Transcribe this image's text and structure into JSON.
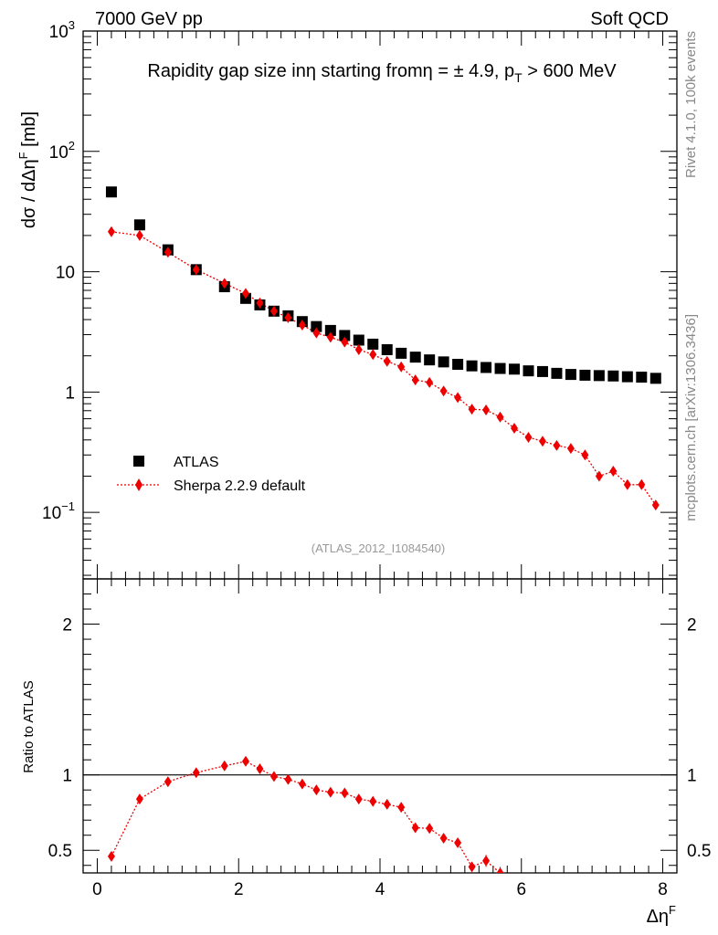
{
  "header": {
    "left": "7000 GeV pp",
    "right": "Soft QCD"
  },
  "side_labels": {
    "top": "Rivet 4.1.0,  100k events",
    "bottom": "mcplots.cern.ch [arXiv:1306.3436]"
  },
  "watermark": "(ATLAS_2012_I1084540)",
  "colors": {
    "atlas": "#000000",
    "sherpa": "#ee0000",
    "side_text": "#888888"
  },
  "chart_data": [
    {
      "type": "scatter",
      "title": "Rapidity gap size in η starting from η = ± 4.9, p_T > 600 MeV",
      "title_parts": {
        "a": "Rapidity gap size in",
        "b": "η starting from",
        "c": "η = ± 4.9, p",
        "sub": "T",
        "d": " > 600 MeV"
      },
      "ylabel": "dσ / dΔη^F [mb]",
      "ylabel_parts": {
        "main": "dσ / dΔη",
        "sup": "F",
        "unit": " [mb]"
      },
      "yscale": "log",
      "ylim": [
        0.028,
        1000
      ],
      "xlim": [
        -0.2,
        8.2
      ],
      "y_ticks": [
        {
          "value": 0.1,
          "base": "10",
          "exp": "−1"
        },
        {
          "value": 1,
          "label": "1"
        },
        {
          "value": 10,
          "label": "10"
        },
        {
          "value": 100,
          "base": "10",
          "exp": "2"
        },
        {
          "value": 1000,
          "base": "10",
          "exp": "3"
        }
      ],
      "legend": [
        {
          "name": "ATLAS",
          "marker": "square"
        },
        {
          "name": "Sherpa 2.2.9 default",
          "marker": "diamond"
        }
      ],
      "legend_position": "lower-left",
      "series": [
        {
          "name": "ATLAS",
          "x": [
            0.2,
            0.6,
            1.0,
            1.4,
            1.8,
            2.1,
            2.3,
            2.5,
            2.7,
            2.9,
            3.1,
            3.3,
            3.5,
            3.7,
            3.9,
            4.1,
            4.3,
            4.5,
            4.7,
            4.9,
            5.1,
            5.3,
            5.5,
            5.7,
            5.9,
            6.1,
            6.3,
            6.5,
            6.7,
            6.9,
            7.1,
            7.3,
            7.5,
            7.7,
            7.9
          ],
          "y": [
            46,
            24.5,
            15.2,
            10.4,
            7.5,
            6.0,
            5.3,
            4.7,
            4.3,
            3.85,
            3.5,
            3.25,
            2.95,
            2.7,
            2.5,
            2.25,
            2.1,
            1.95,
            1.85,
            1.78,
            1.7,
            1.65,
            1.6,
            1.57,
            1.55,
            1.5,
            1.48,
            1.43,
            1.4,
            1.38,
            1.37,
            1.36,
            1.34,
            1.33,
            1.3
          ]
        },
        {
          "name": "Sherpa 2.2.9 default",
          "x": [
            0.2,
            0.6,
            1.0,
            1.4,
            1.8,
            2.1,
            2.3,
            2.5,
            2.7,
            2.9,
            3.1,
            3.3,
            3.5,
            3.7,
            3.9,
            4.1,
            4.3,
            4.5,
            4.7,
            4.9,
            5.1,
            5.3,
            5.5,
            5.7,
            5.9,
            6.1,
            6.3,
            6.5,
            6.7,
            6.9,
            7.1,
            7.3,
            7.5,
            7.7,
            7.9
          ],
          "y": [
            21.5,
            20.0,
            14.5,
            10.4,
            8.0,
            6.6,
            5.5,
            4.7,
            4.15,
            3.6,
            3.1,
            2.85,
            2.6,
            2.25,
            2.05,
            1.8,
            1.62,
            1.26,
            1.2,
            1.02,
            0.9,
            0.72,
            0.71,
            0.62,
            0.5,
            0.42,
            0.39,
            0.36,
            0.34,
            0.3,
            0.2,
            0.22,
            0.17,
            0.17,
            0.115
          ]
        }
      ]
    },
    {
      "type": "line",
      "ylabel": "Ratio to ATLAS",
      "xlabel": "Δη^F",
      "xlabel_parts": {
        "main": "Δη",
        "sup": "F"
      },
      "xlim": [
        -0.2,
        8.2
      ],
      "ylim": [
        0.35,
        2.3
      ],
      "x_ticks": [
        0,
        2,
        4,
        6,
        8
      ],
      "y_ticks": [
        0.5,
        1,
        2
      ],
      "reference_line": 1,
      "series": [
        {
          "name": "Sherpa 2.2.9 default",
          "x": [
            0.2,
            0.6,
            1.0,
            1.4,
            1.8,
            2.1,
            2.3,
            2.5,
            2.7,
            2.9,
            3.1,
            3.3,
            3.5,
            3.7,
            3.9,
            4.1,
            4.3,
            4.5,
            4.7,
            4.9,
            5.1,
            5.3,
            5.5,
            5.7
          ],
          "y": [
            0.46,
            0.84,
            0.955,
            1.015,
            1.06,
            1.09,
            1.04,
            0.99,
            0.97,
            0.94,
            0.9,
            0.885,
            0.88,
            0.84,
            0.825,
            0.805,
            0.785,
            0.65,
            0.645,
            0.58,
            0.55,
            0.39,
            0.43,
            0.35
          ],
          "err": [
            0.006,
            0.015,
            0.012,
            0.012,
            0.015,
            0.015,
            0.015,
            0.012,
            0.012,
            0.012,
            0.012,
            0.015,
            0.015,
            0.015,
            0.015,
            0.02,
            0.02,
            0.025,
            0.025,
            0.025,
            0.03,
            0.03,
            0.04,
            0.04
          ]
        }
      ]
    }
  ]
}
